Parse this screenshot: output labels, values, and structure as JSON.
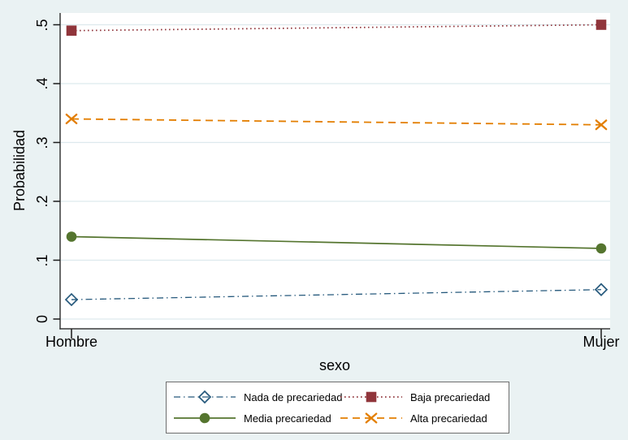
{
  "colors": {
    "background": "#eaf2f3",
    "plot_background": "#ffffff",
    "gridline": "#dde9ed",
    "axis": "#3a3a3a",
    "tick": "#1a1a1a",
    "legend_border": "#6e6e6e",
    "legend_background": "#ffffff",
    "text": "#000000"
  },
  "chart_data": {
    "type": "line",
    "title": "",
    "xlabel": "sexo",
    "ylabel": "Probabilidad",
    "categories": [
      "Hombre",
      "Mujer"
    ],
    "y_ticks": [
      "0",
      ".1",
      ".2",
      ".3",
      ".4",
      ".5"
    ],
    "y_tick_values": [
      0,
      0.1,
      0.2,
      0.3,
      0.4,
      0.5
    ],
    "ylim": [
      0,
      0.5
    ],
    "grid": true,
    "legend_position": "bottom",
    "series": [
      {
        "name": "Nada de precariedad",
        "values": [
          0.033,
          0.05
        ],
        "color": "#26597c",
        "line_style": "dash-dot",
        "marker": "diamond-hollow"
      },
      {
        "name": "Baja precariedad",
        "values": [
          0.49,
          0.5
        ],
        "color": "#90353b",
        "line_style": "dotted",
        "marker": "square-filled"
      },
      {
        "name": "Media precariedad",
        "values": [
          0.14,
          0.12
        ],
        "color": "#55752f",
        "line_style": "solid",
        "marker": "circle-filled"
      },
      {
        "name": "Alta precariedad",
        "values": [
          0.34,
          0.33
        ],
        "color": "#e37e00",
        "line_style": "dashed",
        "marker": "x"
      }
    ]
  }
}
